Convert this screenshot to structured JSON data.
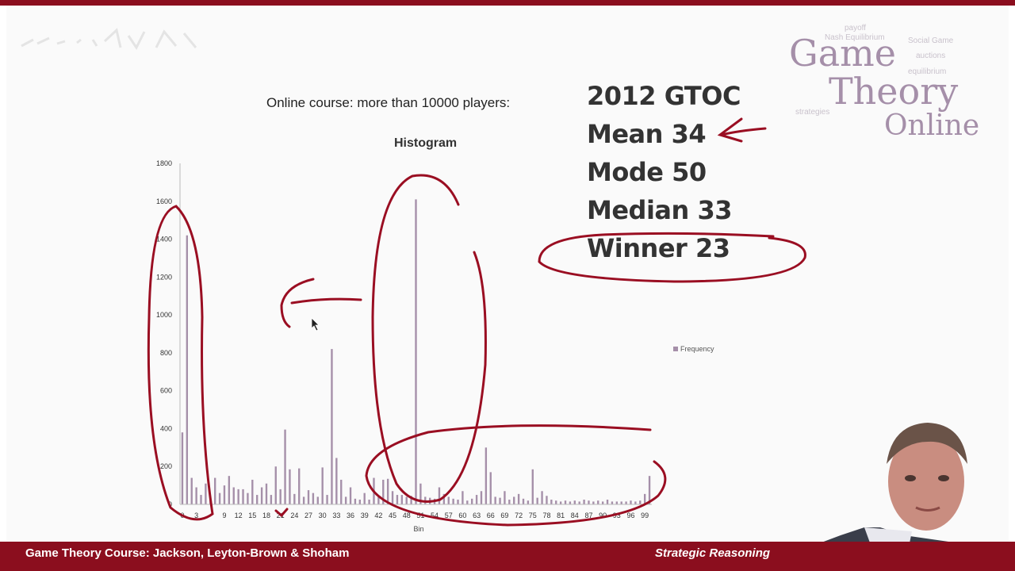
{
  "slide": {
    "subtitle": "Online course:  more than 10000 players:",
    "stats": [
      "2012 GTOC",
      "Mean  34",
      "Mode 50",
      "Median  33",
      "Winner  23"
    ]
  },
  "logo": {
    "line1": "Game",
    "line2": "Theory",
    "line3": "Online",
    "background_words": [
      "payoff",
      "Nash Equilibrium",
      "Social Game",
      "equilibrium",
      "strategies",
      "auctions"
    ]
  },
  "footer": {
    "course": "Game Theory Course: Jackson, Leyton-Brown & Shoham",
    "section": "Strategic Reasoning"
  },
  "colors": {
    "bar": "#a58fa9",
    "annotation": "#9a0e22",
    "banner": "#8b0e1e"
  },
  "chart_data": {
    "type": "bar",
    "title": "Histogram",
    "xlabel": "Bin",
    "ylabel": "",
    "ylim": [
      0,
      1800
    ],
    "yticks": [
      0,
      200,
      400,
      600,
      800,
      1000,
      1200,
      1400,
      1600,
      1800
    ],
    "xtick_labels": [
      "0",
      "3",
      "9",
      "12",
      "15",
      "18",
      "21",
      "24",
      "27",
      "30",
      "33",
      "36",
      "39",
      "42",
      "45",
      "48",
      "51",
      "54",
      "57",
      "60",
      "63",
      "66",
      "69",
      "72",
      "75",
      "78",
      "81",
      "84",
      "87",
      "90",
      "93",
      "96",
      "99"
    ],
    "legend": [
      "Frequency"
    ],
    "legend_position": "right",
    "grid": false,
    "categories": [
      0,
      1,
      2,
      3,
      4,
      5,
      6,
      7,
      8,
      9,
      10,
      11,
      12,
      13,
      14,
      15,
      16,
      17,
      18,
      19,
      20,
      21,
      22,
      23,
      24,
      25,
      26,
      27,
      28,
      29,
      30,
      31,
      32,
      33,
      34,
      35,
      36,
      37,
      38,
      39,
      40,
      41,
      42,
      43,
      44,
      45,
      46,
      47,
      48,
      49,
      50,
      51,
      52,
      53,
      54,
      55,
      56,
      57,
      58,
      59,
      60,
      61,
      62,
      63,
      64,
      65,
      66,
      67,
      68,
      69,
      70,
      71,
      72,
      73,
      74,
      75,
      76,
      77,
      78,
      79,
      80,
      81,
      82,
      83,
      84,
      85,
      86,
      87,
      88,
      89,
      90,
      91,
      92,
      93,
      94,
      95,
      96,
      97,
      98,
      99,
      100
    ],
    "series": [
      {
        "name": "Frequency",
        "values": [
          380,
          1420,
          140,
          90,
          50,
          110,
          40,
          140,
          60,
          100,
          150,
          90,
          80,
          80,
          60,
          130,
          50,
          90,
          110,
          50,
          200,
          80,
          395,
          185,
          55,
          190,
          40,
          75,
          60,
          40,
          195,
          50,
          820,
          245,
          130,
          40,
          90,
          30,
          25,
          60,
          25,
          140,
          45,
          130,
          135,
          70,
          50,
          50,
          40,
          45,
          1610,
          110,
          40,
          35,
          30,
          90,
          55,
          40,
          30,
          25,
          70,
          20,
          30,
          50,
          70,
          300,
          170,
          40,
          35,
          70,
          25,
          40,
          55,
          30,
          20,
          185,
          35,
          70,
          45,
          25,
          20,
          15,
          20,
          15,
          20,
          15,
          25,
          20,
          15,
          20,
          15,
          25,
          15,
          15,
          15,
          15,
          20,
          15,
          20,
          55,
          150
        ]
      }
    ]
  }
}
